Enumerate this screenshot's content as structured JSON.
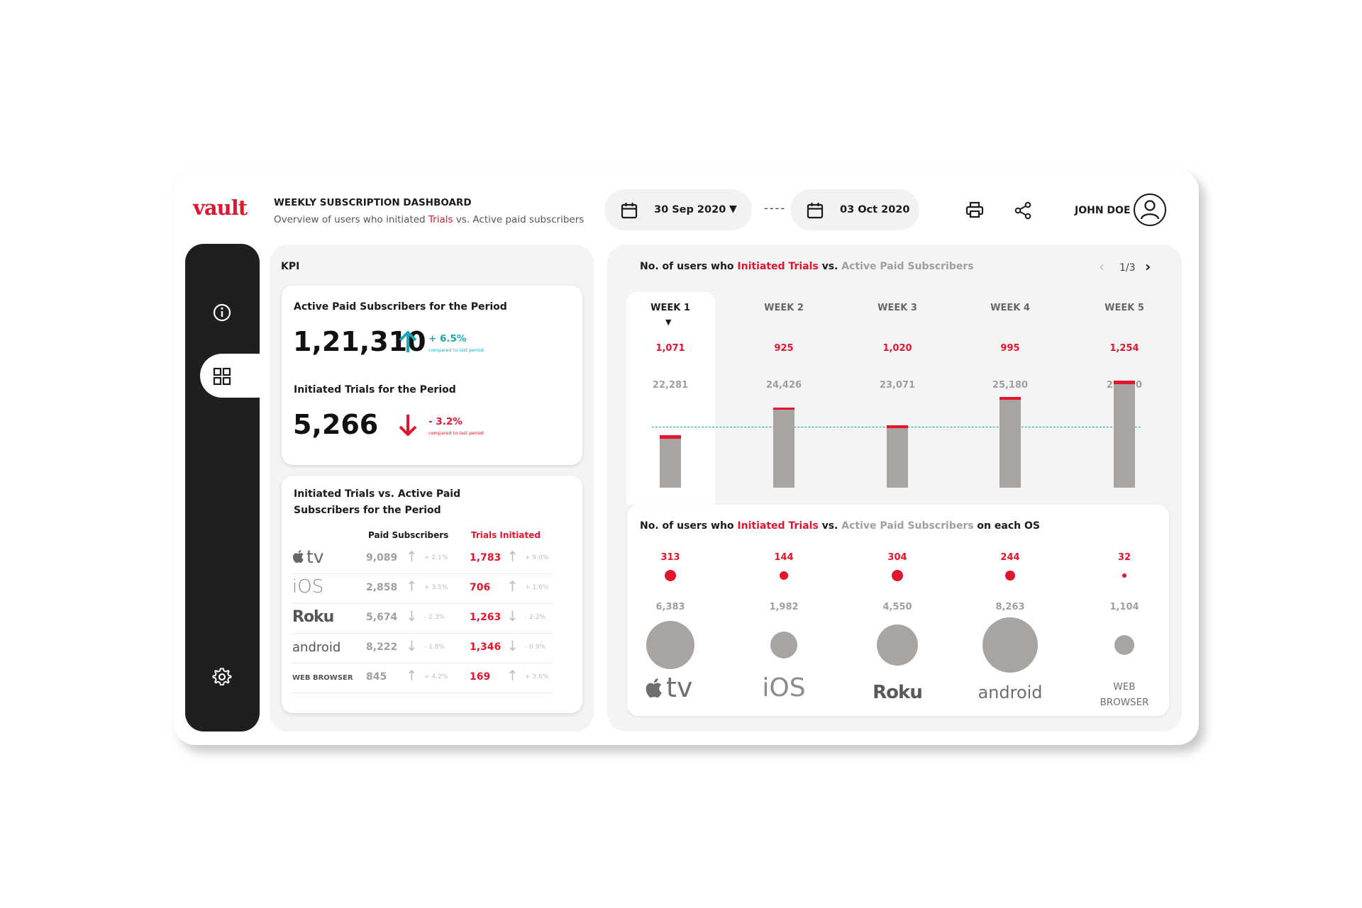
{
  "header": {
    "logo": "vault",
    "title": "WEEKLY SUBSCRIPTION DASHBOARD",
    "subtitle_pre": "Overview of users who initiated ",
    "subtitle_red": "Trials",
    "subtitle_post": " vs. Active paid subscribers",
    "start_date": "30 Sep 2020",
    "separator": "----",
    "end_date": "03 Oct 2020",
    "user_name": "JOHN DOE"
  },
  "kpi": {
    "label": "KPI",
    "paid_title": "Active Paid Subscribers for the Period",
    "paid_value": "1,21,310",
    "paid_change": "+ 6.5%",
    "paid_compare": "compared to last period",
    "trials_title": "Initiated Trials for the Period",
    "trials_value": "5,266",
    "trials_change": "- 3.2%",
    "trials_compare": "compared to last period"
  },
  "table": {
    "title": "Initiated Trials vs. Active Paid Subscribers for the Period",
    "col_paid": "Paid Subscribers",
    "col_trials": "Trials Initiated",
    "rows": [
      {
        "os": "tv",
        "paid": "9,089",
        "paid_change": "+ 2.1%",
        "paid_dir": "up",
        "trials": "1,783",
        "trials_change": "+ 9.0%",
        "trials_dir": "up"
      },
      {
        "os": "iOS",
        "paid": "2,858",
        "paid_change": "+ 3.5%",
        "paid_dir": "up",
        "trials": "706",
        "trials_change": "+ 1.6%",
        "trials_dir": "up"
      },
      {
        "os": "Roku",
        "paid": "5,674",
        "paid_change": "- 2.3%",
        "paid_dir": "down",
        "trials": "1,263",
        "trials_change": "- 2.2%",
        "trials_dir": "down"
      },
      {
        "os": "android",
        "paid": "8,222",
        "paid_change": "- 1.8%",
        "paid_dir": "down",
        "trials": "1,346",
        "trials_change": "- 0.9%",
        "trials_dir": "down"
      },
      {
        "os": "WEB BROWSER",
        "paid": "845",
        "paid_change": "+ 4.2%",
        "paid_dir": "up",
        "trials": "169",
        "trials_change": "+ 3.6%",
        "trials_dir": "up"
      }
    ]
  },
  "weekly_chart": {
    "title_pre": "No. of users who ",
    "title_red": "Initiated Trials",
    "title_mid": " vs. ",
    "title_gray": "Active Paid Subscribers",
    "pager": "1/3",
    "weeks": [
      "WEEK 1",
      "WEEK 2",
      "WEEK 3",
      "WEEK 4",
      "WEEK 5"
    ],
    "active_week": 0
  },
  "os_chart": {
    "title_pre": "No. of users who ",
    "title_red": "Initiated Trials",
    "title_mid": " vs. ",
    "title_gray": "Active Paid Subscribers",
    "title_post": " on each OS",
    "labels": [
      "tv",
      "iOS",
      "Roku",
      "android",
      "WEB BROWSER"
    ],
    "web_line1": "WEB",
    "web_line2": "BROWSER"
  },
  "colors": {
    "red": "#e0152e",
    "teal": "#1aa7b6",
    "gray": "#a8a4a2",
    "dark": "#1f1f1f"
  },
  "icons": [
    "calendar-icon",
    "chevron-down-icon",
    "printer-icon",
    "share-icon",
    "user-avatar-icon",
    "info-icon",
    "grid-icon",
    "gear-icon",
    "arrow-up-icon",
    "arrow-down-icon",
    "chevron-left-icon",
    "chevron-right-icon",
    "apple-icon"
  ],
  "chart_data": [
    {
      "type": "bar",
      "categories": [
        "WEEK 1",
        "WEEK 2",
        "WEEK 3",
        "WEEK 4",
        "WEEK 5"
      ],
      "series": [
        {
          "values": [
            1071,
            925,
            1020,
            995,
            1254
          ]
        },
        {
          "values": [
            22281,
            24426,
            23071,
            25180,
            26350
          ]
        }
      ]
    },
    {
      "type": "scatter",
      "categories": [
        "tv",
        "iOS",
        "Roku",
        "android",
        "WEB BROWSER"
      ],
      "series": [
        {
          "values": [
            313,
            144,
            304,
            244,
            32
          ]
        },
        {
          "values": [
            6383,
            1982,
            4550,
            8263,
            1104
          ]
        }
      ]
    }
  ]
}
